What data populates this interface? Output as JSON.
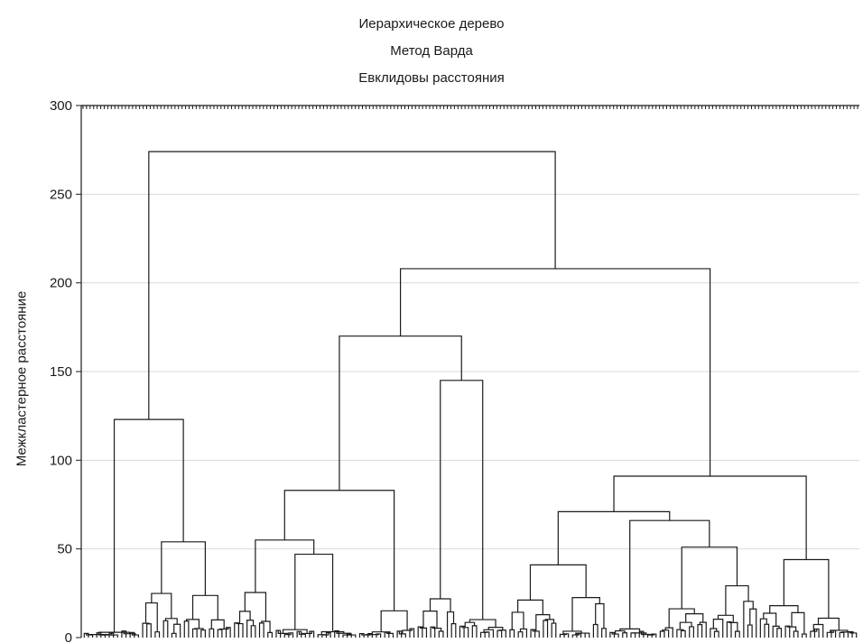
{
  "chart_data": {
    "type": "dendrogram",
    "title": [
      "Иерархическое дерево",
      "Метод Варда",
      "Евклидовы расстояния"
    ],
    "ylabel": "Межкластерное расстояние",
    "ylim": [
      0,
      300
    ],
    "yticks": [
      0,
      50,
      100,
      150,
      200,
      250,
      300
    ],
    "grid": true,
    "leaf_count": 220,
    "main_merges": [
      {
        "height": 274,
        "note": "top merge of left group and right group"
      },
      {
        "height": 208
      },
      {
        "height": 170
      },
      {
        "height": 145
      },
      {
        "height": 123
      },
      {
        "height": 91
      },
      {
        "height": 83
      },
      {
        "height": 71
      },
      {
        "height": 66
      },
      {
        "height": 55
      },
      {
        "height": 54
      },
      {
        "height": 51
      },
      {
        "height": 47
      },
      {
        "height": 44
      },
      {
        "height": 41
      },
      {
        "height": 39
      }
    ]
  },
  "colors": {
    "line": "#1a1a1a",
    "grid": "#d9d9d9",
    "background": "#ffffff"
  }
}
